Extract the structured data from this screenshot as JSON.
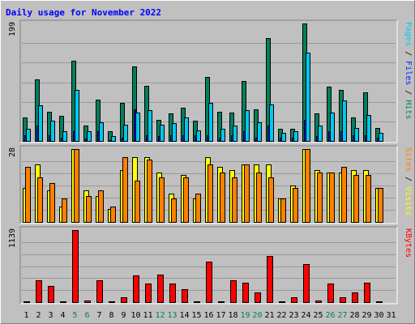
{
  "chart_data": {
    "type": "bar",
    "title": "Daily usage for November 2022",
    "colors": {
      "hits": "#00805f",
      "files": "#0024ff",
      "pages": "#00c8f0",
      "visits": "#ffff00",
      "sites": "#ff8000",
      "kbytes": "#ff0000",
      "title": "#0000ff",
      "weekend": "#00805f",
      "plot_bg": "#c0c0c0"
    },
    "x": [
      "1",
      "2",
      "3",
      "4",
      "5",
      "6",
      "7",
      "8",
      "9",
      "10",
      "11",
      "12",
      "13",
      "14",
      "15",
      "16",
      "17",
      "18",
      "19",
      "20",
      "21",
      "22",
      "23",
      "24",
      "25",
      "26",
      "27",
      "28",
      "29",
      "30",
      "31"
    ],
    "weekend_days": [
      "5",
      "6",
      "12",
      "13",
      "19",
      "20",
      "26",
      "27"
    ],
    "panels": [
      {
        "label_parts": [
          {
            "text": "Hits",
            "color": "#00805f"
          },
          {
            "text": "Files",
            "color": "#0024ff"
          },
          {
            "text": "Pages",
            "color": "#00c8f0"
          }
        ],
        "ymax_label": "199",
        "ymax": 199,
        "series": [
          {
            "name": "Hits",
            "color": "#00805f",
            "values": [
              40,
              104,
              50,
              42,
              136,
              26,
              70,
              16,
              64,
              126,
              94,
              36,
              46,
              56,
              34,
              108,
              50,
              48,
              102,
              54,
              174,
              20,
              20,
              199,
              46,
              92,
              86,
              40,
              82,
              22,
              0
            ]
          },
          {
            "name": "Files",
            "color": "#0024ff",
            "values": [
              10,
              26,
              10,
              6,
              16,
              4,
              16,
              2,
              6,
              54,
              10,
              8,
              10,
              10,
              10,
              10,
              6,
              10,
              16,
              6,
              26,
              6,
              6,
              36,
              8,
              16,
              16,
              10,
              10,
              6,
              0
            ]
          },
          {
            "name": "Pages",
            "color": "#00c8f0",
            "values": [
              20,
              60,
              34,
              16,
              86,
              16,
              32,
              8,
              28,
              48,
              52,
              28,
              30,
              40,
              18,
              64,
              20,
              26,
              52,
              32,
              62,
              14,
              16,
              150,
              26,
              48,
              68,
              22,
              44,
              14,
              0
            ]
          }
        ]
      },
      {
        "label_parts": [
          {
            "text": "Visits",
            "color": "#ffff00"
          },
          {
            "text": "Sites",
            "color": "#ff8000"
          }
        ],
        "ymax_label": "28",
        "ymax": 28,
        "series": [
          {
            "name": "Visits",
            "color": "#ffff00",
            "values": [
              13,
              22,
              12,
              6,
              28,
              12,
              10,
              5,
              20,
              25,
              25,
              19,
              11,
              18,
              9,
              25,
              21,
              20,
              22,
              22,
              22,
              9,
              14,
              28,
              20,
              19,
              19,
              20,
              20,
              13,
              0
            ]
          },
          {
            "name": "Sites",
            "color": "#ff8000",
            "values": [
              21,
              17,
              15,
              9,
              28,
              10,
              12,
              6,
              25,
              16,
              24,
              17,
              9,
              17,
              11,
              22,
              19,
              17,
              22,
              19,
              17,
              9,
              13,
              28,
              19,
              19,
              21,
              18,
              18,
              13,
              0
            ]
          }
        ]
      },
      {
        "label_parts": [
          {
            "text": "KBytes",
            "color": "#ff0000"
          }
        ],
        "ymax_label": "1139",
        "ymax": 1139,
        "series": [
          {
            "name": "KBytes",
            "color": "#ff0000",
            "values": [
              10,
              340,
              260,
              10,
              1139,
              20,
              340,
              10,
              80,
              420,
              300,
              430,
              290,
              210,
              10,
              640,
              10,
              350,
              310,
              150,
              730,
              10,
              80,
              600,
              20,
              300,
              80,
              150,
              310,
              10,
              0
            ]
          }
        ]
      }
    ]
  }
}
